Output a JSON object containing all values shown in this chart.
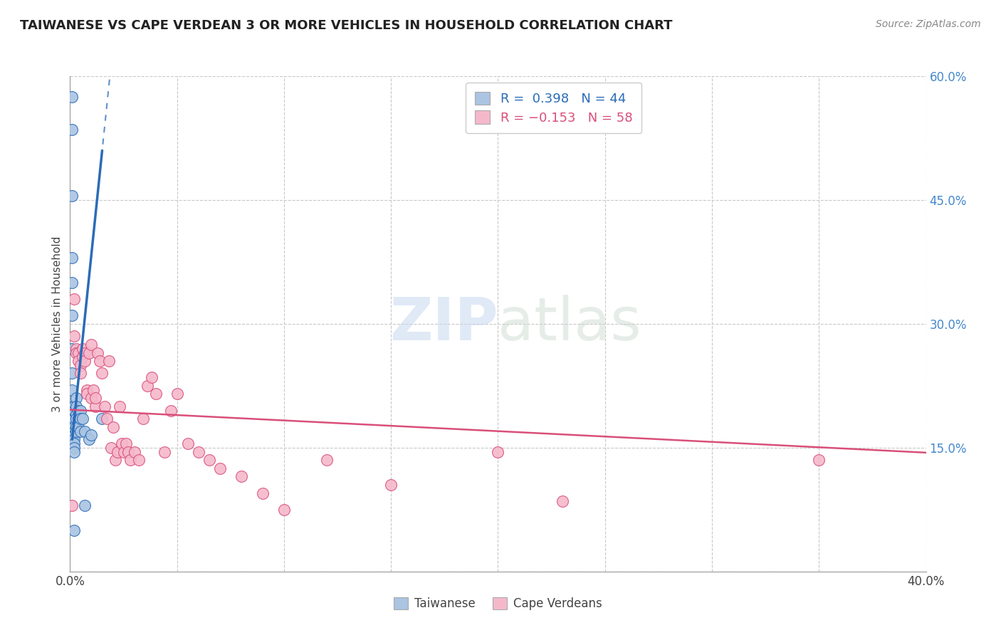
{
  "title": "TAIWANESE VS CAPE VERDEAN 3 OR MORE VEHICLES IN HOUSEHOLD CORRELATION CHART",
  "source": "Source: ZipAtlas.com",
  "ylabel": "3 or more Vehicles in Household",
  "xlim": [
    0.0,
    0.4
  ],
  "ylim": [
    0.0,
    0.6
  ],
  "xticks": [
    0.0,
    0.05,
    0.1,
    0.15,
    0.2,
    0.25,
    0.3,
    0.35,
    0.4
  ],
  "yticks": [
    0.0,
    0.15,
    0.3,
    0.45,
    0.6
  ],
  "legend_taiwanese_label": "Taiwanese",
  "legend_capeverdean_label": "Cape Verdeans",
  "R_taiwanese": 0.398,
  "N_taiwanese": 44,
  "R_capeverdean": -0.153,
  "N_capeverdean": 58,
  "color_taiwanese": "#aac4e2",
  "color_taiwanese_line": "#2b6cb8",
  "color_capeverdean": "#f5b8cb",
  "color_capeverdean_line": "#d94f7a",
  "background_color": "#ffffff",
  "grid_color": "#c8c8c8",
  "watermark_zip": "ZIP",
  "watermark_atlas": "atlas",
  "taiwanese_x": [
    0.001,
    0.001,
    0.001,
    0.001,
    0.001,
    0.001,
    0.001,
    0.001,
    0.001,
    0.001,
    0.001,
    0.001,
    0.001,
    0.001,
    0.001,
    0.002,
    0.002,
    0.002,
    0.002,
    0.002,
    0.002,
    0.002,
    0.002,
    0.002,
    0.002,
    0.002,
    0.003,
    0.003,
    0.003,
    0.003,
    0.003,
    0.003,
    0.004,
    0.004,
    0.004,
    0.005,
    0.005,
    0.005,
    0.006,
    0.007,
    0.007,
    0.009,
    0.01,
    0.015
  ],
  "taiwanese_y": [
    0.575,
    0.535,
    0.455,
    0.38,
    0.35,
    0.31,
    0.27,
    0.24,
    0.22,
    0.2,
    0.195,
    0.185,
    0.17,
    0.165,
    0.155,
    0.2,
    0.195,
    0.185,
    0.175,
    0.17,
    0.165,
    0.16,
    0.155,
    0.15,
    0.145,
    0.05,
    0.21,
    0.2,
    0.19,
    0.185,
    0.175,
    0.17,
    0.195,
    0.185,
    0.175,
    0.195,
    0.185,
    0.17,
    0.185,
    0.17,
    0.08,
    0.16,
    0.165,
    0.185
  ],
  "capeverdean_x": [
    0.001,
    0.002,
    0.002,
    0.003,
    0.003,
    0.004,
    0.004,
    0.005,
    0.005,
    0.006,
    0.006,
    0.007,
    0.007,
    0.008,
    0.008,
    0.009,
    0.01,
    0.01,
    0.011,
    0.012,
    0.012,
    0.013,
    0.014,
    0.015,
    0.016,
    0.017,
    0.018,
    0.019,
    0.02,
    0.021,
    0.022,
    0.023,
    0.024,
    0.025,
    0.026,
    0.027,
    0.028,
    0.03,
    0.032,
    0.034,
    0.036,
    0.038,
    0.04,
    0.044,
    0.047,
    0.05,
    0.055,
    0.06,
    0.065,
    0.07,
    0.08,
    0.09,
    0.1,
    0.12,
    0.15,
    0.2,
    0.23,
    0.35
  ],
  "capeverdean_y": [
    0.08,
    0.33,
    0.285,
    0.27,
    0.265,
    0.265,
    0.255,
    0.25,
    0.24,
    0.27,
    0.26,
    0.265,
    0.255,
    0.22,
    0.215,
    0.265,
    0.275,
    0.21,
    0.22,
    0.2,
    0.21,
    0.265,
    0.255,
    0.24,
    0.2,
    0.185,
    0.255,
    0.15,
    0.175,
    0.135,
    0.145,
    0.2,
    0.155,
    0.145,
    0.155,
    0.145,
    0.135,
    0.145,
    0.135,
    0.185,
    0.225,
    0.235,
    0.215,
    0.145,
    0.195,
    0.215,
    0.155,
    0.145,
    0.135,
    0.125,
    0.115,
    0.095,
    0.075,
    0.135,
    0.105,
    0.145,
    0.085,
    0.135
  ],
  "tw_trend_x0": 0.0,
  "tw_trend_x1": 0.02,
  "tw_trend_slope": 25.0,
  "tw_trend_intercept": 0.135,
  "cv_trend_x0": 0.0,
  "cv_trend_x1": 0.4,
  "cv_trend_slope": -0.13,
  "cv_trend_intercept": 0.196
}
